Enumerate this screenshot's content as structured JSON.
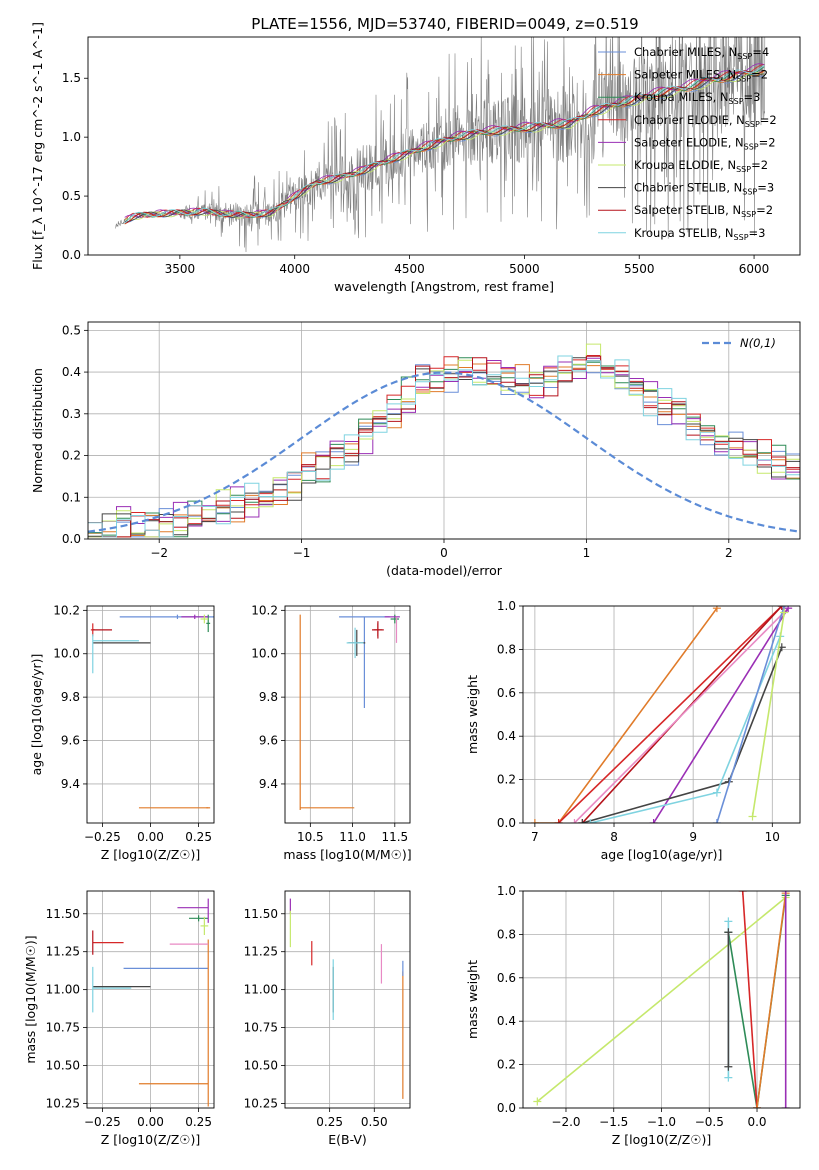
{
  "figure": {
    "title": "PLATE=1556, MJD=53740, FIBERID=0049, z=0.519"
  },
  "colors": {
    "data_spectrum": "#7f7f7f",
    "Chabrier MILES": "#6a8fd8",
    "Salpeter MILES": "#e07b2a",
    "Kroupa MILES": "#2e8b57",
    "Chabrier ELODIE": "#d62728",
    "Salpeter ELODIE": "#9a2fb5",
    "Kroupa ELODIE": "#e88ac4",
    "Chabrier STELIB": "#444444",
    "Salpeter STELIB": "#b5121b",
    "Kroupa STELIB": "#7fd3e0",
    "Kroupa ELODIE line": "#c5e86c",
    "normal_curve": "#5b8bd6",
    "grid": "#b0b0b0"
  },
  "chart_data": [
    {
      "id": "spectrum",
      "type": "line",
      "xlabel": "wavelength [Angstrom, rest frame]",
      "ylabel": "Flux [f_λ 10^-17 erg cm^-2 s^-1 A^-1]",
      "xlim": [
        3100,
        6200
      ],
      "ylim": [
        0,
        1.85
      ],
      "xticks": [
        3500,
        4000,
        4500,
        5000,
        5500,
        6000
      ],
      "yticks": [
        0.0,
        0.5,
        1.0,
        1.5
      ],
      "grid": false,
      "legend_position": "upper-right",
      "legend": [
        {
          "label": "Chabrier MILES, N",
          "sub": "SSP",
          "suffix": "=4",
          "color": "#6a8fd8"
        },
        {
          "label": "Salpeter MILES, N",
          "sub": "SSP",
          "suffix": "=2",
          "color": "#e07b2a"
        },
        {
          "label": "Kroupa MILES, N",
          "sub": "SSP",
          "suffix": "=3",
          "color": "#2e8b57"
        },
        {
          "label": "Chabrier ELODIE, N",
          "sub": "SSP",
          "suffix": "=2",
          "color": "#d62728"
        },
        {
          "label": "Salpeter ELODIE, N",
          "sub": "SSP",
          "suffix": "=2",
          "color": "#9a2fb5"
        },
        {
          "label": "Kroupa ELODIE, N",
          "sub": "SSP",
          "suffix": "=2",
          "color": "#c5e86c"
        },
        {
          "label": "Chabrier STELIB, N",
          "sub": "SSP",
          "suffix": "=3",
          "color": "#444444"
        },
        {
          "label": "Salpeter STELIB, N",
          "sub": "SSP",
          "suffix": "=2",
          "color": "#b5121b"
        },
        {
          "label": "Kroupa STELIB, N",
          "sub": "SSP",
          "suffix": "=3",
          "color": "#7fd3e0"
        }
      ],
      "continuum_x": [
        3220,
        3300,
        3400,
        3500,
        3600,
        3700,
        3800,
        3900,
        4000,
        4100,
        4200,
        4300,
        4400,
        4500,
        4600,
        4700,
        4800,
        4900,
        5000,
        5100,
        5200,
        5300,
        5400,
        5500,
        5600,
        5700,
        5800,
        5900,
        6050
      ],
      "continuum_y": [
        0.25,
        0.33,
        0.35,
        0.36,
        0.37,
        0.35,
        0.34,
        0.36,
        0.5,
        0.62,
        0.66,
        0.72,
        0.8,
        0.87,
        0.94,
        1.0,
        1.04,
        1.06,
        1.08,
        1.1,
        1.12,
        1.22,
        1.28,
        1.33,
        1.38,
        1.42,
        1.48,
        1.52,
        1.58
      ],
      "noisy_from": 3500,
      "noisy_to": 6050
    },
    {
      "id": "residuals",
      "type": "histogram",
      "xlabel": "(data-model)/error",
      "ylabel": "Normed distribution",
      "xlim": [
        -2.5,
        2.5
      ],
      "ylim": [
        0,
        0.52
      ],
      "xticks": [
        -2,
        -1,
        0,
        1,
        2
      ],
      "yticks": [
        0.0,
        0.1,
        0.2,
        0.3,
        0.4,
        0.5
      ],
      "grid": true,
      "legend_position": "upper-right",
      "legend": [
        {
          "label": "N(0,1)",
          "color": "#5b8bd6",
          "style": "dashed"
        }
      ],
      "bin_width": 0.1,
      "bins_from": -2.5,
      "envelope": [
        0.02,
        0.02,
        0.03,
        0.03,
        0.03,
        0.04,
        0.04,
        0.05,
        0.06,
        0.07,
        0.08,
        0.09,
        0.1,
        0.12,
        0.14,
        0.16,
        0.18,
        0.2,
        0.22,
        0.25,
        0.28,
        0.31,
        0.34,
        0.37,
        0.39,
        0.4,
        0.41,
        0.4,
        0.39,
        0.38,
        0.37,
        0.37,
        0.38,
        0.4,
        0.42,
        0.42,
        0.4,
        0.38,
        0.36,
        0.34,
        0.32,
        0.3,
        0.28,
        0.26,
        0.24,
        0.22,
        0.2,
        0.19,
        0.18,
        0.17
      ]
    },
    {
      "id": "age_vs_Z",
      "type": "errorbar",
      "xlabel": "Z [log10(Z/Z☉)]",
      "ylabel": "age [log10(age/yr)]",
      "xlim": [
        -0.33,
        0.33
      ],
      "ylim": [
        9.22,
        10.22
      ],
      "xticks": [
        -0.25,
        0.0,
        0.25
      ],
      "xticklabels": [
        "−0.25",
        "0.00",
        "0.25"
      ],
      "yticks": [
        9.4,
        9.6,
        9.8,
        10.0,
        10.2
      ],
      "grid": true,
      "points": [
        {
          "color": "#6a8fd8",
          "x": 0.14,
          "xerr": 0.3,
          "y": 10.17,
          "yerr": 0.01
        },
        {
          "color": "#e07b2a",
          "x": 0.3,
          "xerr": 0.01,
          "y": 9.29,
          "yerr": 0.0
        },
        {
          "color": "#e07b2a",
          "x": 0.12,
          "xerr": 0.18,
          "y": 9.29,
          "yerr": 0.0
        },
        {
          "color": "#2e8b57",
          "x": 0.3,
          "xerr": 0.01,
          "y": 10.14,
          "yerr": 0.04
        },
        {
          "color": "#d62728",
          "x": -0.3,
          "xerr": 0.01,
          "y": 10.11,
          "yerr": 0.03
        },
        {
          "color": "#9a2fb5",
          "x": 0.23,
          "xerr": 0.07,
          "y": 10.17,
          "yerr": 0.01
        },
        {
          "color": "#c5e86c",
          "x": 0.28,
          "xerr": 0.02,
          "y": 10.16,
          "yerr": 0.02
        },
        {
          "color": "#444444",
          "x": -0.15,
          "xerr": 0.15,
          "y": 10.05,
          "yerr": 0.0
        },
        {
          "color": "#b5121b",
          "x": -0.25,
          "xerr": 0.05,
          "y": 10.11,
          "yerr": 0.0
        },
        {
          "color": "#7fd3e0",
          "x": -0.18,
          "xerr": 0.12,
          "y": 10.06,
          "yerr": 0.0
        },
        {
          "color": "#7fd3e0",
          "x": -0.3,
          "xerr": 0.0,
          "y": 10.0,
          "yerr": 0.09
        }
      ]
    },
    {
      "id": "age_vs_mass",
      "type": "errorbar",
      "xlabel": "mass [log10(M/M☉)]",
      "ylabel": "",
      "xlim": [
        10.2,
        11.68
      ],
      "ylim": [
        9.22,
        10.22
      ],
      "xticks": [
        10.5,
        11.0,
        11.5
      ],
      "yticks": [
        9.4,
        9.6,
        9.8,
        10.0,
        10.2
      ],
      "grid": true,
      "points": [
        {
          "color": "#6a8fd8",
          "x": 11.14,
          "xerr": 0.3,
          "y": 10.17,
          "yerr": 0.0
        },
        {
          "color": "#6a8fd8",
          "x": 11.14,
          "xerr": 0.0,
          "y": 9.96,
          "yerr": 0.21
        },
        {
          "color": "#e07b2a",
          "x": 10.38,
          "xerr": 0.0,
          "y": 9.73,
          "yerr": 0.45
        },
        {
          "color": "#e07b2a",
          "x": 10.7,
          "xerr": 0.32,
          "y": 9.29,
          "yerr": 0.0
        },
        {
          "color": "#2e8b57",
          "x": 11.5,
          "xerr": 0.05,
          "y": 10.16,
          "yerr": 0.02
        },
        {
          "color": "#d62728",
          "x": 11.3,
          "xerr": 0.05,
          "y": 10.11,
          "yerr": 0.03
        },
        {
          "color": "#9a2fb5",
          "x": 11.47,
          "xerr": 0.09,
          "y": 10.17,
          "yerr": 0.0
        },
        {
          "color": "#e88ac4",
          "x": 11.52,
          "xerr": 0.0,
          "y": 10.11,
          "yerr": 0.06
        },
        {
          "color": "#444444",
          "x": 11.05,
          "xerr": 0.1,
          "y": 10.05,
          "yerr": 0.06
        },
        {
          "color": "#b5121b",
          "x": 11.3,
          "xerr": 0.07,
          "y": 10.11,
          "yerr": 0.04
        },
        {
          "color": "#7fd3e0",
          "x": 11.03,
          "xerr": 0.1,
          "y": 10.05,
          "yerr": 0.07
        }
      ]
    },
    {
      "id": "weight_vs_age",
      "type": "line",
      "xlabel": "age [log10(age/yr)]",
      "ylabel": "mass weight",
      "xlim": [
        6.85,
        10.35
      ],
      "ylim": [
        0,
        1.0
      ],
      "xticks": [
        7,
        8,
        9,
        10
      ],
      "yticks": [
        0.0,
        0.2,
        0.4,
        0.6,
        0.8,
        1.0
      ],
      "grid": true,
      "series": [
        {
          "color": "#e07b2a",
          "x": [
            7.0,
            7.3,
            9.3
          ],
          "y": [
            0.0,
            0.0,
            0.99
          ]
        },
        {
          "color": "#d62728",
          "x": [
            7.3,
            10.12
          ],
          "y": [
            0.0,
            1.0
          ]
        },
        {
          "color": "#b5121b",
          "x": [
            7.6,
            10.12
          ],
          "y": [
            0.0,
            1.0
          ]
        },
        {
          "color": "#e88ac4",
          "x": [
            7.5,
            10.2
          ],
          "y": [
            0.0,
            0.99
          ]
        },
        {
          "color": "#9a2fb5",
          "x": [
            8.5,
            10.2
          ],
          "y": [
            0.0,
            0.99
          ]
        },
        {
          "color": "#444444",
          "x": [
            7.6,
            9.45,
            10.12
          ],
          "y": [
            0.0,
            0.19,
            0.81
          ]
        },
        {
          "color": "#7fd3e0",
          "x": [
            7.7,
            9.3,
            10.1
          ],
          "y": [
            0.0,
            0.14,
            0.86
          ]
        },
        {
          "color": "#6a8fd8",
          "x": [
            9.3,
            10.15
          ],
          "y": [
            0.0,
            1.0
          ]
        },
        {
          "color": "#c5e86c",
          "x": [
            9.75,
            10.15
          ],
          "y": [
            0.03,
            0.97
          ]
        }
      ]
    },
    {
      "id": "mass_vs_Z",
      "type": "errorbar",
      "xlabel": "Z [log10(Z/Z☉)]",
      "ylabel": "mass [log10(M/M☉)]",
      "xlim": [
        -0.33,
        0.33
      ],
      "ylim": [
        10.22,
        11.65
      ],
      "xticks": [
        -0.25,
        0.0,
        0.25
      ],
      "xticklabels": [
        "−0.25",
        "0.00",
        "0.25"
      ],
      "yticks": [
        10.25,
        10.5,
        10.75,
        11.0,
        11.25,
        11.5
      ],
      "grid": true,
      "points": [
        {
          "color": "#6a8fd8",
          "x": 0.08,
          "xerr": 0.22,
          "y": 11.14,
          "yerr": 0.0
        },
        {
          "color": "#e07b2a",
          "x": 0.3,
          "xerr": 0.0,
          "y": 10.78,
          "yerr": 0.55
        },
        {
          "color": "#e07b2a",
          "x": 0.12,
          "xerr": 0.18,
          "y": 10.38,
          "yerr": 0.0
        },
        {
          "color": "#2e8b57",
          "x": 0.25,
          "xerr": 0.05,
          "y": 11.47,
          "yerr": 0.02
        },
        {
          "color": "#d62728",
          "x": -0.22,
          "xerr": 0.08,
          "y": 11.31,
          "yerr": 0.0
        },
        {
          "color": "#b5121b",
          "x": -0.3,
          "xerr": 0.0,
          "y": 11.31,
          "yerr": 0.08
        },
        {
          "color": "#9a2fb5",
          "x": 0.22,
          "xerr": 0.08,
          "y": 11.54,
          "yerr": 0.0
        },
        {
          "color": "#9a2fb5",
          "x": 0.3,
          "xerr": 0.0,
          "y": 11.52,
          "yerr": 0.08
        },
        {
          "color": "#e88ac4",
          "x": 0.2,
          "xerr": 0.1,
          "y": 11.3,
          "yerr": 0.0
        },
        {
          "color": "#c5e86c",
          "x": 0.28,
          "xerr": 0.02,
          "y": 11.42,
          "yerr": 0.06
        },
        {
          "color": "#444444",
          "x": -0.15,
          "xerr": 0.15,
          "y": 11.02,
          "yerr": 0.0
        },
        {
          "color": "#7fd3e0",
          "x": -0.3,
          "xerr": 0.0,
          "y": 11.0,
          "yerr": 0.15
        },
        {
          "color": "#7fd3e0",
          "x": -0.2,
          "xerr": 0.1,
          "y": 11.01,
          "yerr": 0.0
        }
      ]
    },
    {
      "id": "mass_vs_EBV",
      "type": "errorbar",
      "xlabel": "E(B-V)",
      "ylabel": "",
      "xlim": [
        0.0,
        0.7
      ],
      "ylim": [
        10.22,
        11.65
      ],
      "xticks": [
        0.25,
        0.5
      ],
      "yticks": [
        10.25,
        10.5,
        10.75,
        11.0,
        11.25,
        11.5
      ],
      "grid": true,
      "points": [
        {
          "color": "#9a2fb5",
          "x": 0.03,
          "xerr": 0.0,
          "y": 11.55,
          "yerr": 0.05
        },
        {
          "color": "#c5e86c",
          "x": 0.03,
          "xerr": 0.0,
          "y": 11.4,
          "yerr": 0.12
        },
        {
          "color": "#d62728",
          "x": 0.15,
          "xerr": 0.0,
          "y": 11.24,
          "yerr": 0.08
        },
        {
          "color": "#444444",
          "x": 0.27,
          "xerr": 0.0,
          "y": 11.0,
          "yerr": 0.15
        },
        {
          "color": "#7fd3e0",
          "x": 0.27,
          "xerr": 0.0,
          "y": 11.0,
          "yerr": 0.2
        },
        {
          "color": "#e88ac4",
          "x": 0.54,
          "xerr": 0.0,
          "y": 11.17,
          "yerr": 0.13
        },
        {
          "color": "#e07b2a",
          "x": 0.66,
          "xerr": 0.0,
          "y": 10.7,
          "yerr": 0.42
        },
        {
          "color": "#6a8fd8",
          "x": 0.66,
          "xerr": 0.0,
          "y": 11.14,
          "yerr": 0.05
        }
      ]
    },
    {
      "id": "weight_vs_Z",
      "type": "line",
      "xlabel": "Z [log10(Z/Z☉)]",
      "ylabel": "mass weight",
      "xlim": [
        -2.45,
        0.45
      ],
      "ylim": [
        0,
        1.0
      ],
      "xticks": [
        -2.0,
        -1.5,
        -1.0,
        -0.5,
        0.0
      ],
      "xticklabels": [
        "−2.0",
        "−1.5",
        "−1.0",
        "−0.5",
        "0.0"
      ],
      "yticks": [
        0.0,
        0.2,
        0.4,
        0.6,
        0.8,
        1.0
      ],
      "grid": true,
      "series": [
        {
          "color": "#c5e86c",
          "x": [
            -2.3,
            0.3
          ],
          "y": [
            0.03,
            0.97
          ]
        },
        {
          "color": "#2e8b57",
          "x": [
            -0.3,
            0.0,
            0.3
          ],
          "y": [
            0.81,
            0.0,
            0.98
          ]
        },
        {
          "color": "#7fd3e0",
          "x": [
            -0.3,
            -0.3
          ],
          "y": [
            0.14,
            0.86
          ]
        },
        {
          "color": "#444444",
          "x": [
            -0.3,
            -0.3
          ],
          "y": [
            0.19,
            0.81
          ]
        },
        {
          "color": "#d62728",
          "x": [
            -0.15,
            0.0
          ],
          "y": [
            1.0,
            0.0
          ]
        },
        {
          "color": "#e07b2a",
          "x": [
            0.0,
            0.3
          ],
          "y": [
            0.0,
            0.99
          ]
        },
        {
          "color": "#9a2fb5",
          "x": [
            0.3,
            0.3
          ],
          "y": [
            0.0,
            1.0
          ]
        }
      ]
    }
  ]
}
